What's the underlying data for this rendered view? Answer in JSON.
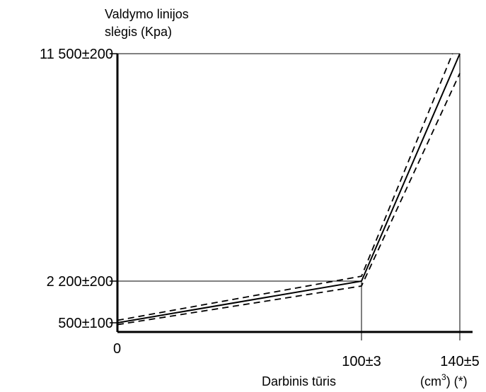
{
  "chart_data": {
    "type": "line",
    "ylabel_line1": "Valdymo linijos",
    "ylabel_line2": "slėgis (Kpa)",
    "xlabel": "Darbinis tūris",
    "x_unit_pre": "(cm",
    "x_unit_sup": "3",
    "x_unit_post": ") (*)",
    "x_origin_label": "0",
    "x_ticks": [
      {
        "value": 100,
        "label": "100±3"
      },
      {
        "value": 140,
        "label": "140±5"
      }
    ],
    "y_ticks": [
      {
        "value": 500,
        "label": "500±100"
      },
      {
        "value": 2200,
        "label": "2 200±200"
      },
      {
        "value": 11500,
        "label": "11 500±200"
      }
    ],
    "xlim": [
      0,
      140
    ],
    "series": [
      {
        "style": "solid",
        "points": [
          [
            0,
            500
          ],
          [
            100,
            2200
          ],
          [
            140,
            11500
          ]
        ]
      },
      {
        "style": "dashed",
        "points": [
          [
            0,
            600
          ],
          [
            100,
            2400
          ],
          [
            137,
            11500
          ]
        ]
      },
      {
        "style": "dashed",
        "points": [
          [
            0,
            400
          ],
          [
            100,
            2000
          ],
          [
            140,
            10700
          ]
        ]
      }
    ]
  }
}
